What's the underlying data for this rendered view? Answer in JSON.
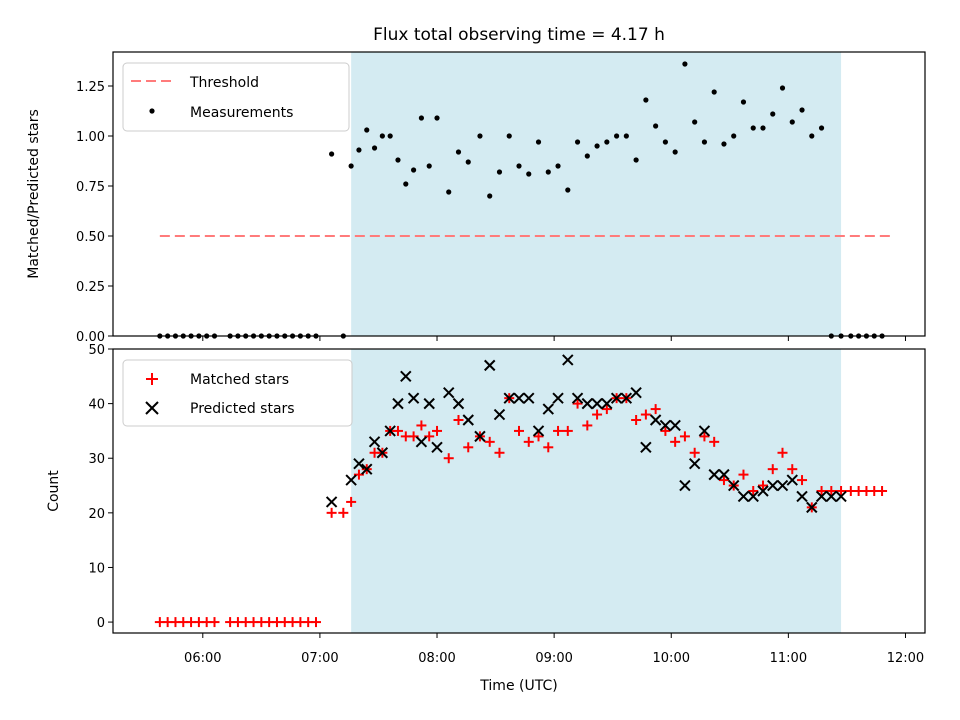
{
  "chart_data": [
    {
      "type": "scatter",
      "title": "Flux total observing time = 4.17 h",
      "ylabel": "Matched/Predicted stars",
      "xlabel": "",
      "xlim": [
        "05:14",
        "12:10"
      ],
      "ylim": [
        0,
        1.42
      ],
      "x_ticks": [
        "06:00",
        "07:00",
        "08:00",
        "09:00",
        "10:00",
        "11:00",
        "12:00"
      ],
      "y_ticks": [
        "0.00",
        "0.25",
        "0.50",
        "0.75",
        "1.00",
        "1.25"
      ],
      "shaded_span": {
        "from": "07:16",
        "to": "11:27",
        "color": "#d4ebf2"
      },
      "legend": {
        "location": "upper left",
        "entries": [
          "Threshold",
          "Measurements"
        ]
      },
      "series": [
        {
          "name": "Threshold",
          "style": "dashed-line",
          "color": "#ff7b7b",
          "x": [
            "05:38",
            "11:52"
          ],
          "y": [
            0.5,
            0.5
          ]
        },
        {
          "name": "Measurements",
          "style": "dot",
          "color": "#000000",
          "x": [
            "05:38",
            "05:42",
            "05:46",
            "05:50",
            "05:54",
            "05:58",
            "06:02",
            "06:06",
            "06:14",
            "06:18",
            "06:22",
            "06:26",
            "06:30",
            "06:34",
            "06:38",
            "06:42",
            "06:46",
            "06:50",
            "06:54",
            "06:58",
            "07:06",
            "07:12",
            "07:16",
            "07:20",
            "07:24",
            "07:28",
            "07:32",
            "07:36",
            "07:40",
            "07:44",
            "07:48",
            "07:52",
            "07:56",
            "08:00",
            "08:06",
            "08:11",
            "08:16",
            "08:22",
            "08:27",
            "08:32",
            "08:37",
            "08:42",
            "08:47",
            "08:52",
            "08:57",
            "09:02",
            "09:07",
            "09:12",
            "09:17",
            "09:22",
            "09:27",
            "09:32",
            "09:37",
            "09:42",
            "09:47",
            "09:52",
            "09:57",
            "10:02",
            "10:07",
            "10:12",
            "10:17",
            "10:22",
            "10:27",
            "10:32",
            "10:37",
            "10:42",
            "10:47",
            "10:52",
            "10:57",
            "11:02",
            "11:07",
            "11:12",
            "11:17",
            "11:22",
            "11:27",
            "11:32",
            "11:36",
            "11:40",
            "11:44",
            "11:48"
          ],
          "y": [
            0,
            0,
            0,
            0,
            0,
            0,
            0,
            0,
            0,
            0,
            0,
            0,
            0,
            0,
            0,
            0,
            0,
            0,
            0,
            0,
            0.91,
            0,
            0.85,
            0.93,
            1.03,
            0.94,
            1.0,
            1.0,
            0.88,
            0.76,
            0.83,
            1.09,
            0.85,
            1.09,
            0.72,
            0.92,
            0.87,
            1.0,
            0.7,
            0.82,
            1.0,
            0.85,
            0.81,
            0.97,
            0.82,
            0.85,
            0.73,
            0.97,
            0.9,
            0.95,
            0.97,
            1.0,
            1.0,
            0.88,
            1.18,
            1.05,
            0.97,
            0.92,
            1.36,
            1.07,
            0.97,
            1.22,
            0.96,
            1.0,
            1.17,
            1.04,
            1.04,
            1.11,
            1.24,
            1.07,
            1.13,
            1.0,
            1.04,
            0,
            0,
            0,
            0,
            0,
            0,
            0
          ]
        }
      ]
    },
    {
      "type": "scatter",
      "title": "",
      "ylabel": "Count",
      "xlabel": "Time (UTC)",
      "xlim": [
        "05:14",
        "12:10"
      ],
      "ylim": [
        -2,
        50
      ],
      "x_ticks": [
        "06:00",
        "07:00",
        "08:00",
        "09:00",
        "10:00",
        "11:00",
        "12:00"
      ],
      "y_ticks": [
        "0",
        "10",
        "20",
        "30",
        "40",
        "50"
      ],
      "shaded_span": {
        "from": "07:16",
        "to": "11:27",
        "color": "#d4ebf2"
      },
      "legend": {
        "location": "upper left",
        "entries": [
          "Matched stars",
          "Predicted stars"
        ]
      },
      "series": [
        {
          "name": "Matched stars",
          "style": "plus",
          "color": "#ff0000",
          "x": [
            "05:38",
            "05:42",
            "05:46",
            "05:50",
            "05:54",
            "05:58",
            "06:02",
            "06:06",
            "06:14",
            "06:18",
            "06:22",
            "06:26",
            "06:30",
            "06:34",
            "06:38",
            "06:42",
            "06:46",
            "06:50",
            "06:54",
            "06:58",
            "07:06",
            "07:12",
            "07:16",
            "07:20",
            "07:24",
            "07:28",
            "07:32",
            "07:36",
            "07:40",
            "07:44",
            "07:48",
            "07:52",
            "07:56",
            "08:00",
            "08:06",
            "08:11",
            "08:16",
            "08:22",
            "08:27",
            "08:32",
            "08:37",
            "08:42",
            "08:47",
            "08:52",
            "08:57",
            "09:02",
            "09:07",
            "09:12",
            "09:17",
            "09:22",
            "09:27",
            "09:32",
            "09:37",
            "09:42",
            "09:47",
            "09:52",
            "09:57",
            "10:02",
            "10:07",
            "10:12",
            "10:17",
            "10:22",
            "10:27",
            "10:32",
            "10:37",
            "10:42",
            "10:47",
            "10:52",
            "10:57",
            "11:02",
            "11:07",
            "11:12",
            "11:17",
            "11:22",
            "11:27",
            "11:32",
            "11:36",
            "11:40",
            "11:44",
            "11:48"
          ],
          "y": [
            0,
            0,
            0,
            0,
            0,
            0,
            0,
            0,
            0,
            0,
            0,
            0,
            0,
            0,
            0,
            0,
            0,
            0,
            0,
            0,
            20,
            20,
            22,
            27,
            28,
            31,
            31,
            35,
            35,
            34,
            34,
            36,
            34,
            35,
            30,
            37,
            32,
            34,
            33,
            31,
            41,
            35,
            33,
            34,
            32,
            35,
            35,
            40,
            36,
            38,
            39,
            41,
            41,
            37,
            38,
            39,
            35,
            33,
            34,
            31,
            34,
            33,
            26,
            25,
            27,
            24,
            25,
            28,
            31,
            28,
            26,
            21,
            24,
            24,
            24,
            24,
            24,
            24,
            24,
            24
          ]
        },
        {
          "name": "Predicted stars",
          "style": "x",
          "color": "#000000",
          "x": [
            "07:06",
            "07:16",
            "07:20",
            "07:24",
            "07:28",
            "07:32",
            "07:36",
            "07:40",
            "07:44",
            "07:48",
            "07:52",
            "07:56",
            "08:00",
            "08:06",
            "08:11",
            "08:16",
            "08:22",
            "08:27",
            "08:32",
            "08:37",
            "08:42",
            "08:47",
            "08:52",
            "08:57",
            "09:02",
            "09:07",
            "09:12",
            "09:17",
            "09:22",
            "09:27",
            "09:32",
            "09:37",
            "09:42",
            "09:47",
            "09:52",
            "09:57",
            "10:02",
            "10:07",
            "10:12",
            "10:17",
            "10:22",
            "10:27",
            "10:32",
            "10:37",
            "10:42",
            "10:47",
            "10:52",
            "10:57",
            "11:02",
            "11:07",
            "11:12",
            "11:17",
            "11:22",
            "11:27"
          ],
          "y": [
            22,
            26,
            29,
            28,
            33,
            31,
            35,
            40,
            45,
            41,
            33,
            40,
            32,
            42,
            40,
            37,
            34,
            47,
            38,
            41,
            41,
            41,
            35,
            39,
            41,
            48,
            41,
            40,
            40,
            40,
            41,
            41,
            42,
            32,
            37,
            36,
            36,
            25,
            29,
            35,
            27,
            27,
            25,
            23,
            23,
            24,
            25,
            25,
            26,
            23,
            21,
            23,
            23,
            23
          ]
        }
      ]
    }
  ]
}
